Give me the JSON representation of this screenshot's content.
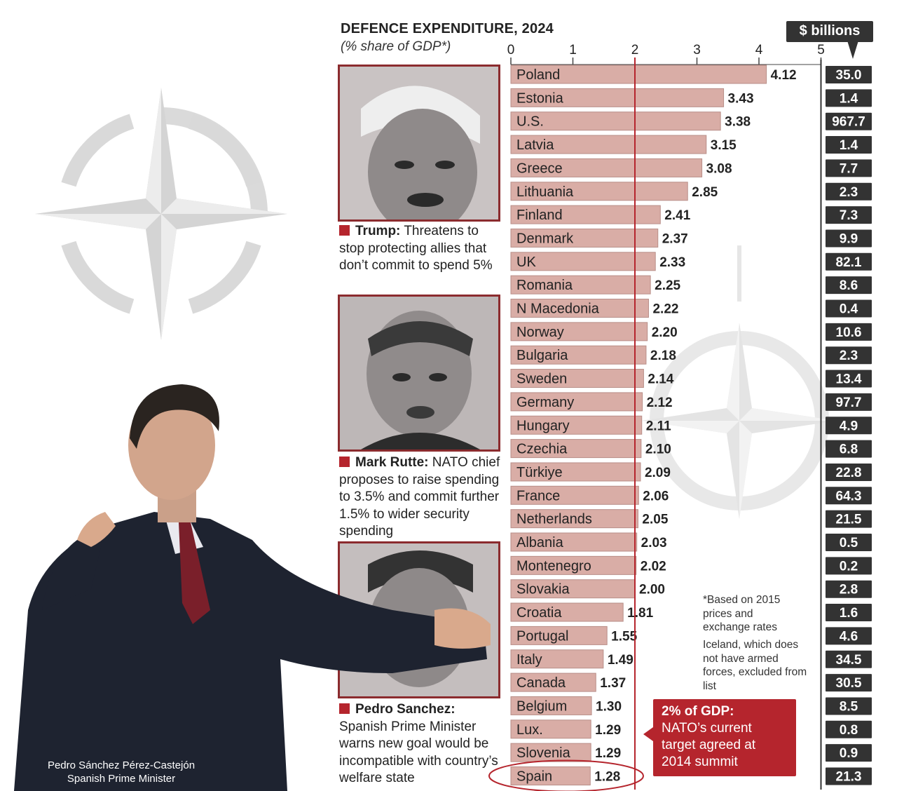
{
  "chart_data": {
    "type": "bar",
    "orientation": "horizontal",
    "title": "DEFENCE EXPENDITURE, 2024",
    "subtitle": "(% share of GDP*)",
    "xlim": [
      0,
      5
    ],
    "x_ticks": [
      0,
      1,
      2,
      3,
      4,
      5
    ],
    "reference_line": 2,
    "grid": false,
    "bar_color": "#d9ada6",
    "bar_border_color": "#b88e88",
    "reference_line_color": "#b5252d",
    "value_box_color": "#333333",
    "categories": [
      "Poland",
      "Estonia",
      "U.S.",
      "Latvia",
      "Greece",
      "Lithuania",
      "Finland",
      "Denmark",
      "UK",
      "Romania",
      "N Macedonia",
      "Norway",
      "Bulgaria",
      "Sweden",
      "Germany",
      "Hungary",
      "Czechia",
      "Türkiye",
      "France",
      "Netherlands",
      "Albania",
      "Montenegro",
      "Slovakia",
      "Croatia",
      "Portugal",
      "Italy",
      "Canada",
      "Belgium",
      "Lux.",
      "Slovenia",
      "Spain"
    ],
    "values": [
      4.12,
      3.43,
      3.38,
      3.15,
      3.08,
      2.85,
      2.41,
      2.37,
      2.33,
      2.25,
      2.22,
      2.2,
      2.18,
      2.14,
      2.12,
      2.11,
      2.1,
      2.09,
      2.06,
      2.05,
      2.03,
      2.02,
      2.0,
      1.81,
      1.55,
      1.49,
      1.37,
      1.3,
      1.29,
      1.29,
      1.28
    ],
    "value_labels": [
      "4.12",
      "3.43",
      "3.38",
      "3.15",
      "3.08",
      "2.85",
      "2.41",
      "2.37",
      "2.33",
      "2.25",
      "2.22",
      "2.20",
      "2.18",
      "2.14",
      "2.12",
      "2.11",
      "2.10",
      "2.09",
      "2.06",
      "2.05",
      "2.03",
      "2.02",
      "2.00",
      "1.81",
      "1.55",
      "1.49",
      "1.37",
      "1.30",
      "1.29",
      "1.29",
      "1.28"
    ],
    "billions_header": "$ billions",
    "billions": [
      "35.0",
      "1.4",
      "967.7",
      "1.4",
      "7.7",
      "2.3",
      "7.3",
      "9.9",
      "82.1",
      "8.6",
      "0.4",
      "10.6",
      "2.3",
      "13.4",
      "97.7",
      "4.9",
      "6.8",
      "22.8",
      "64.3",
      "21.5",
      "0.5",
      "0.2",
      "2.8",
      "1.6",
      "4.6",
      "34.5",
      "30.5",
      "8.5",
      "0.8",
      "0.9",
      "21.3"
    ],
    "highlighted_category": "Spain"
  },
  "captions": [
    {
      "name": "Trump:",
      "text": " Threatens to stop protecting allies that don’t commit to spend 5%"
    },
    {
      "name": "Mark Rutte:",
      "text": " NATO chief proposes to raise spending to 3.5% and commit further 1.5% to wider security spending"
    },
    {
      "name": "Pedro Sanchez:",
      "text": " Spanish Prime Minister warns new goal would be incompatible with country’s welfare state"
    }
  ],
  "notes": {
    "footnote": "*Based on 2015 prices and exchange rates",
    "iceland": "Iceland, which does not have armed forces, excluded from list"
  },
  "target_box": {
    "title": "2% of GDP:",
    "text": "NATO’s current target agreed at 2014 summit"
  },
  "photo_credit": {
    "name": "Pedro Sánchez Pérez-Castejón",
    "role": "Spanish Prime Minister"
  },
  "colors": {
    "accent_red": "#b5252d",
    "photo_frame": "#8b2b2e",
    "nato_emblem": "#d6d6d6"
  },
  "icons": [
    "nato-compass-star-icon",
    "caption-square-icon"
  ]
}
